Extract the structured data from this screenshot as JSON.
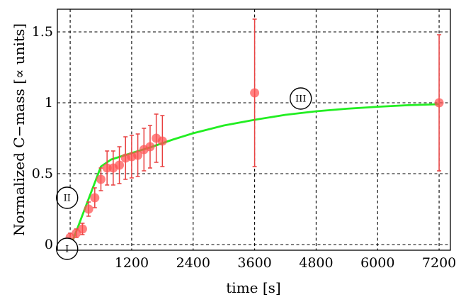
{
  "chart_data": {
    "type": "scatter",
    "xlabel": "time [s]",
    "ylabel": "Normalized C−mass [∝ units]",
    "xlim": [
      -250,
      7420
    ],
    "ylim": [
      -0.04,
      1.66
    ],
    "xticks": [
      1200,
      2400,
      3600,
      4800,
      6000,
      7200
    ],
    "xtick_labels": [
      "1200",
      "2400",
      "3600",
      "4800",
      "6000",
      "7200"
    ],
    "yticks": [
      0,
      0.5,
      1,
      1.5
    ],
    "ytick_labels": [
      "0",
      "0.5",
      "1",
      "1.5"
    ],
    "grid": true,
    "colors": {
      "points": "#ff5050",
      "errorbars": "#e84040",
      "fit": "#22ee22"
    },
    "series": [
      {
        "type": "scatter_errorbar",
        "points": [
          {
            "x": 0,
            "y": 0.05,
            "err": 0.03
          },
          {
            "x": 120,
            "y": 0.08,
            "err": 0.03
          },
          {
            "x": 240,
            "y": 0.11,
            "err": 0.04
          },
          {
            "x": 360,
            "y": 0.25,
            "err": 0.05
          },
          {
            "x": 480,
            "y": 0.33,
            "err": 0.07
          },
          {
            "x": 600,
            "y": 0.46,
            "err": 0.08
          },
          {
            "x": 720,
            "y": 0.54,
            "err": 0.12
          },
          {
            "x": 840,
            "y": 0.54,
            "err": 0.12
          },
          {
            "x": 960,
            "y": 0.56,
            "err": 0.13
          },
          {
            "x": 1080,
            "y": 0.61,
            "err": 0.15
          },
          {
            "x": 1200,
            "y": 0.62,
            "err": 0.15
          },
          {
            "x": 1320,
            "y": 0.63,
            "err": 0.15
          },
          {
            "x": 1440,
            "y": 0.67,
            "err": 0.15
          },
          {
            "x": 1560,
            "y": 0.69,
            "err": 0.15
          },
          {
            "x": 1680,
            "y": 0.75,
            "err": 0.17
          },
          {
            "x": 1800,
            "y": 0.73,
            "err": 0.18
          },
          {
            "x": 3600,
            "y": 1.07,
            "err": 0.52
          },
          {
            "x": 7200,
            "y": 1.0,
            "err": 0.48
          }
        ]
      },
      {
        "type": "line",
        "x": [
          0,
          600,
          800,
          1200,
          1600,
          2000,
          2400,
          3000,
          3600,
          4200,
          4800,
          5400,
          6000,
          6600,
          7200
        ],
        "y": [
          -0.02,
          0.55,
          0.6,
          0.645,
          0.69,
          0.74,
          0.785,
          0.84,
          0.88,
          0.915,
          0.94,
          0.958,
          0.972,
          0.983,
          0.99
        ]
      }
    ],
    "annotations": [
      {
        "text": "I",
        "x": -60,
        "y": -0.03
      },
      {
        "text": "II",
        "x": -60,
        "y": 0.33
      },
      {
        "text": "III",
        "x": 4500,
        "y": 1.03
      }
    ]
  }
}
